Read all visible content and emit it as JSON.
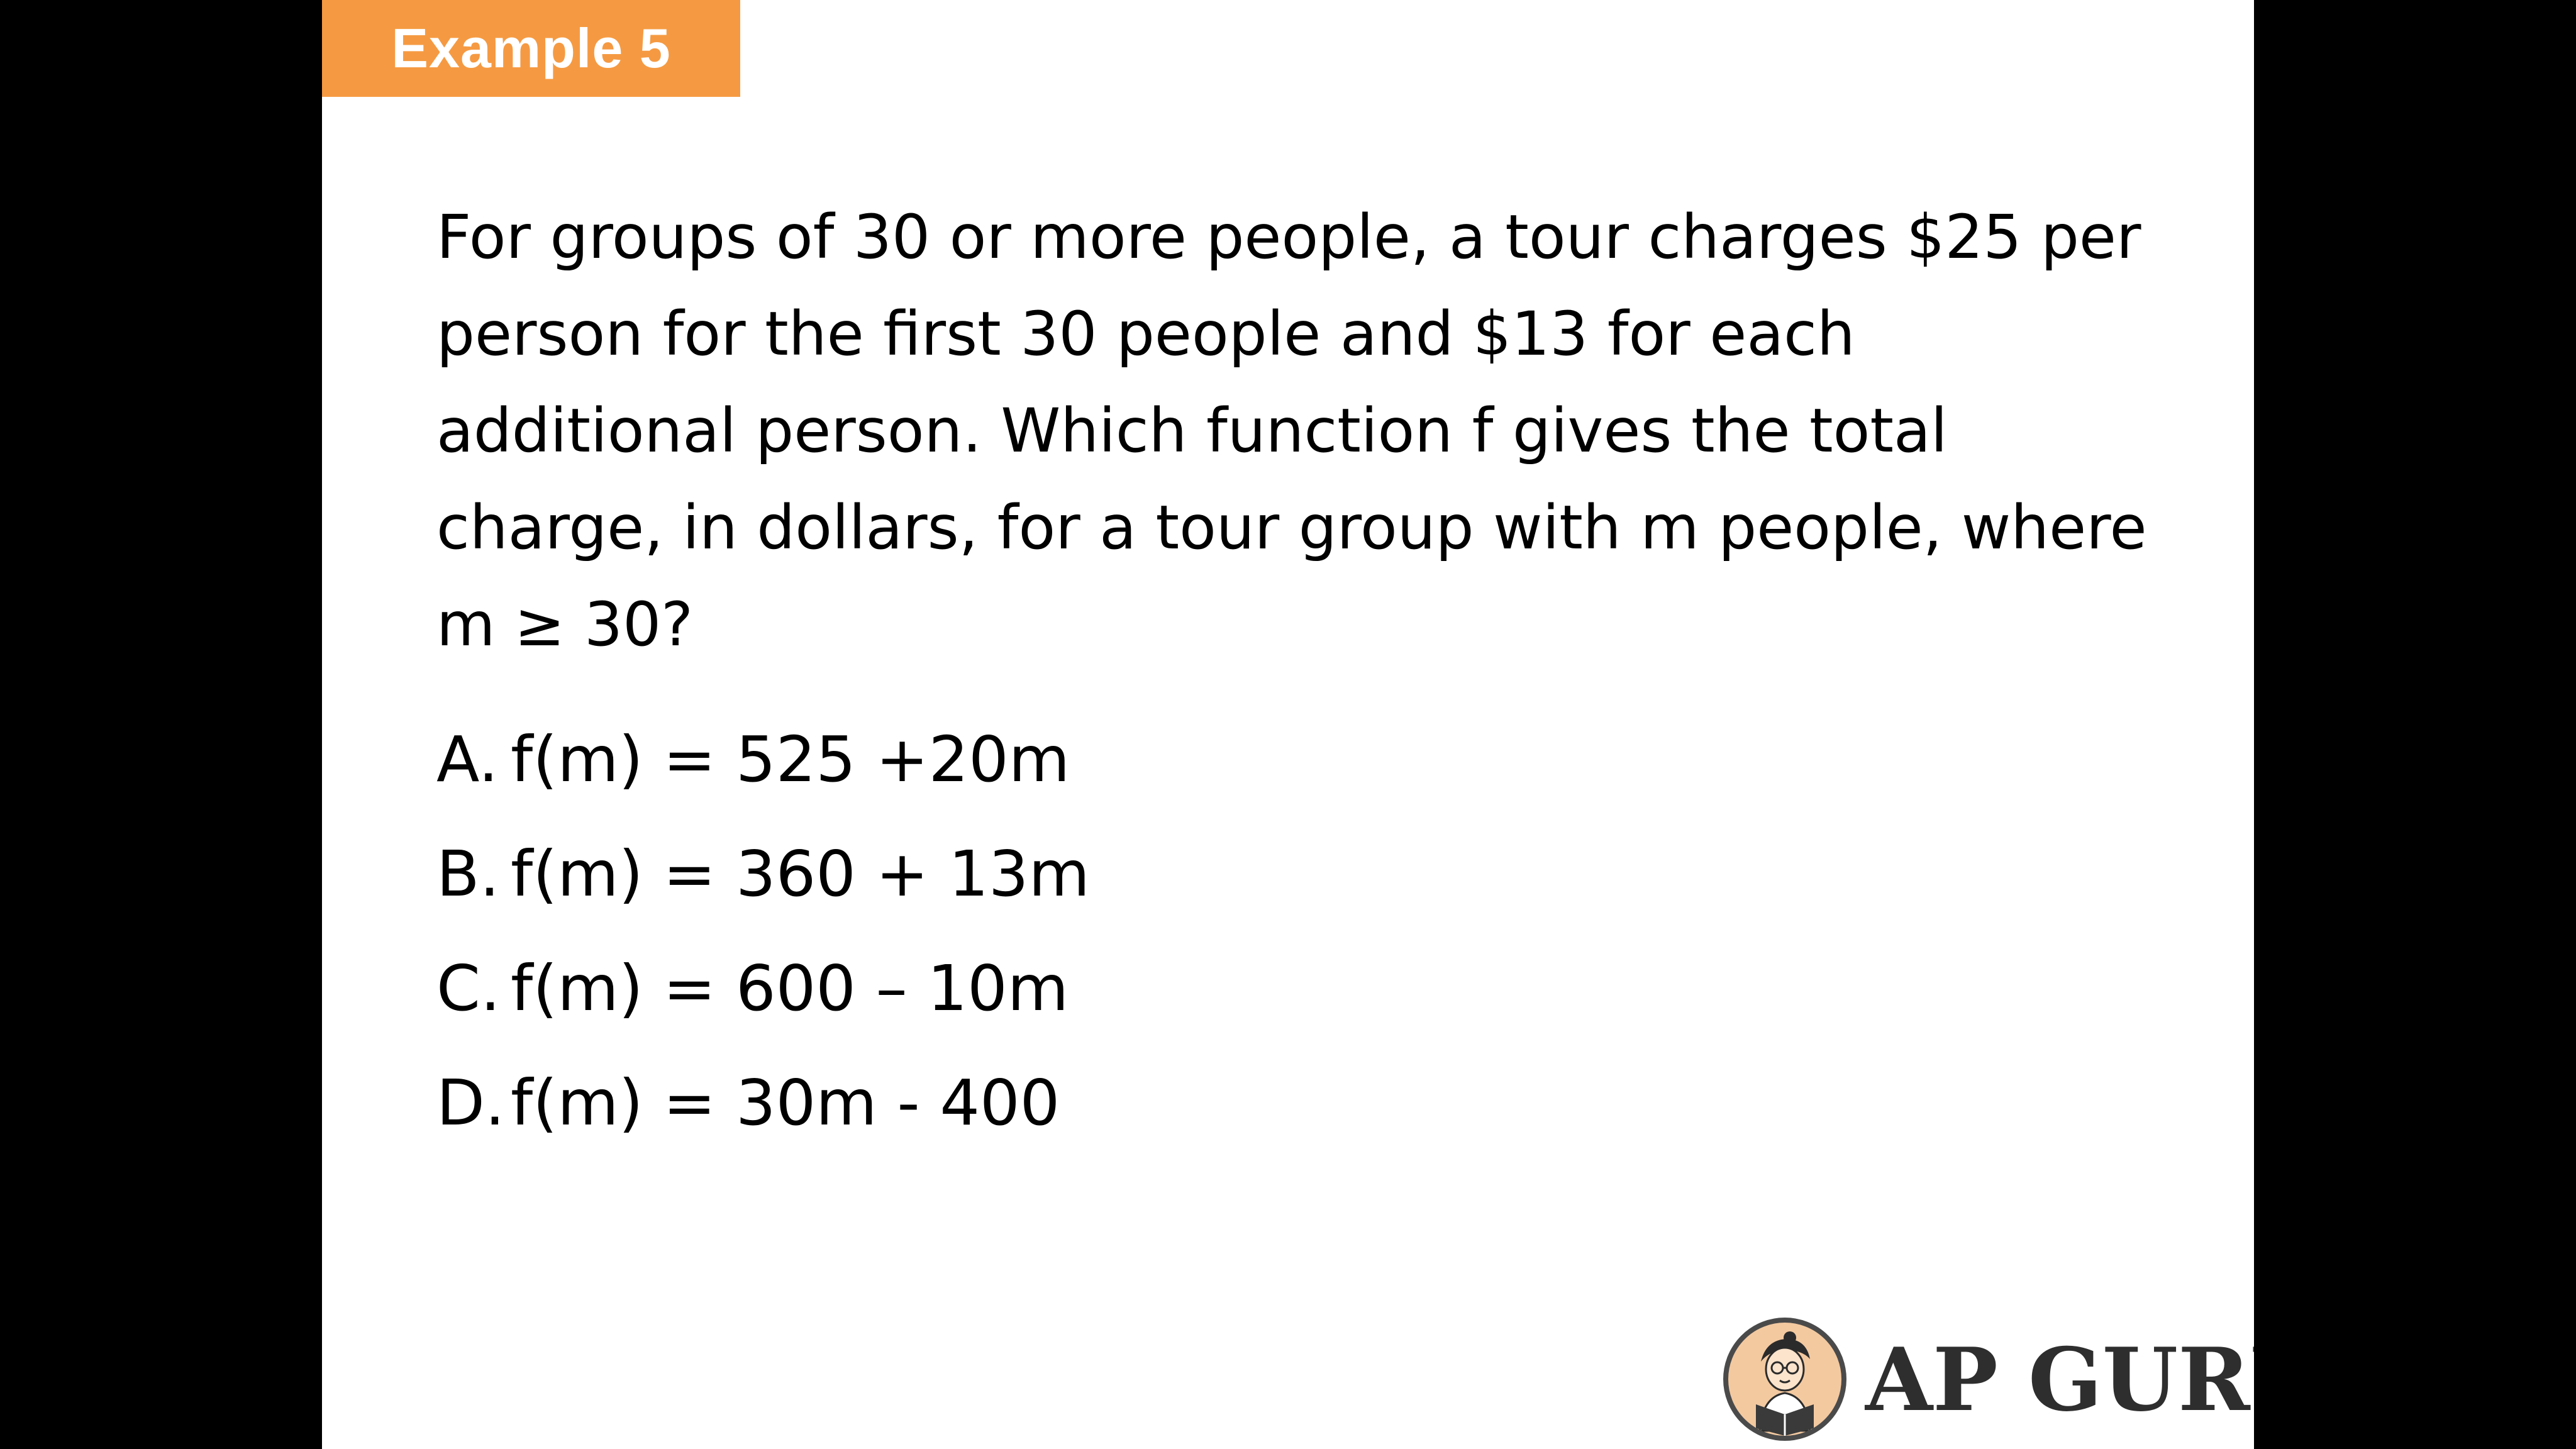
{
  "tag": {
    "label": "Example 5",
    "color": "#f59a42"
  },
  "question": {
    "text": "For groups of 30 or more people, a tour charges $25 per person for the first 30 people and $13 for each additional person. Which function f gives the total charge, in dollars, for a tour group with m people, where m ≥ 30?"
  },
  "options": [
    {
      "letter": "A.",
      "expression": "f(m) = 525 +20m"
    },
    {
      "letter": "B.",
      "expression": "f(m) = 360 + 13m"
    },
    {
      "letter": "C.",
      "expression": "f(m) = 600 – 10m"
    },
    {
      "letter": "D.",
      "expression": "f(m) = 30m - 400"
    }
  ],
  "logo": {
    "text": "AP GURU",
    "icon": "reader-mascot-icon"
  }
}
